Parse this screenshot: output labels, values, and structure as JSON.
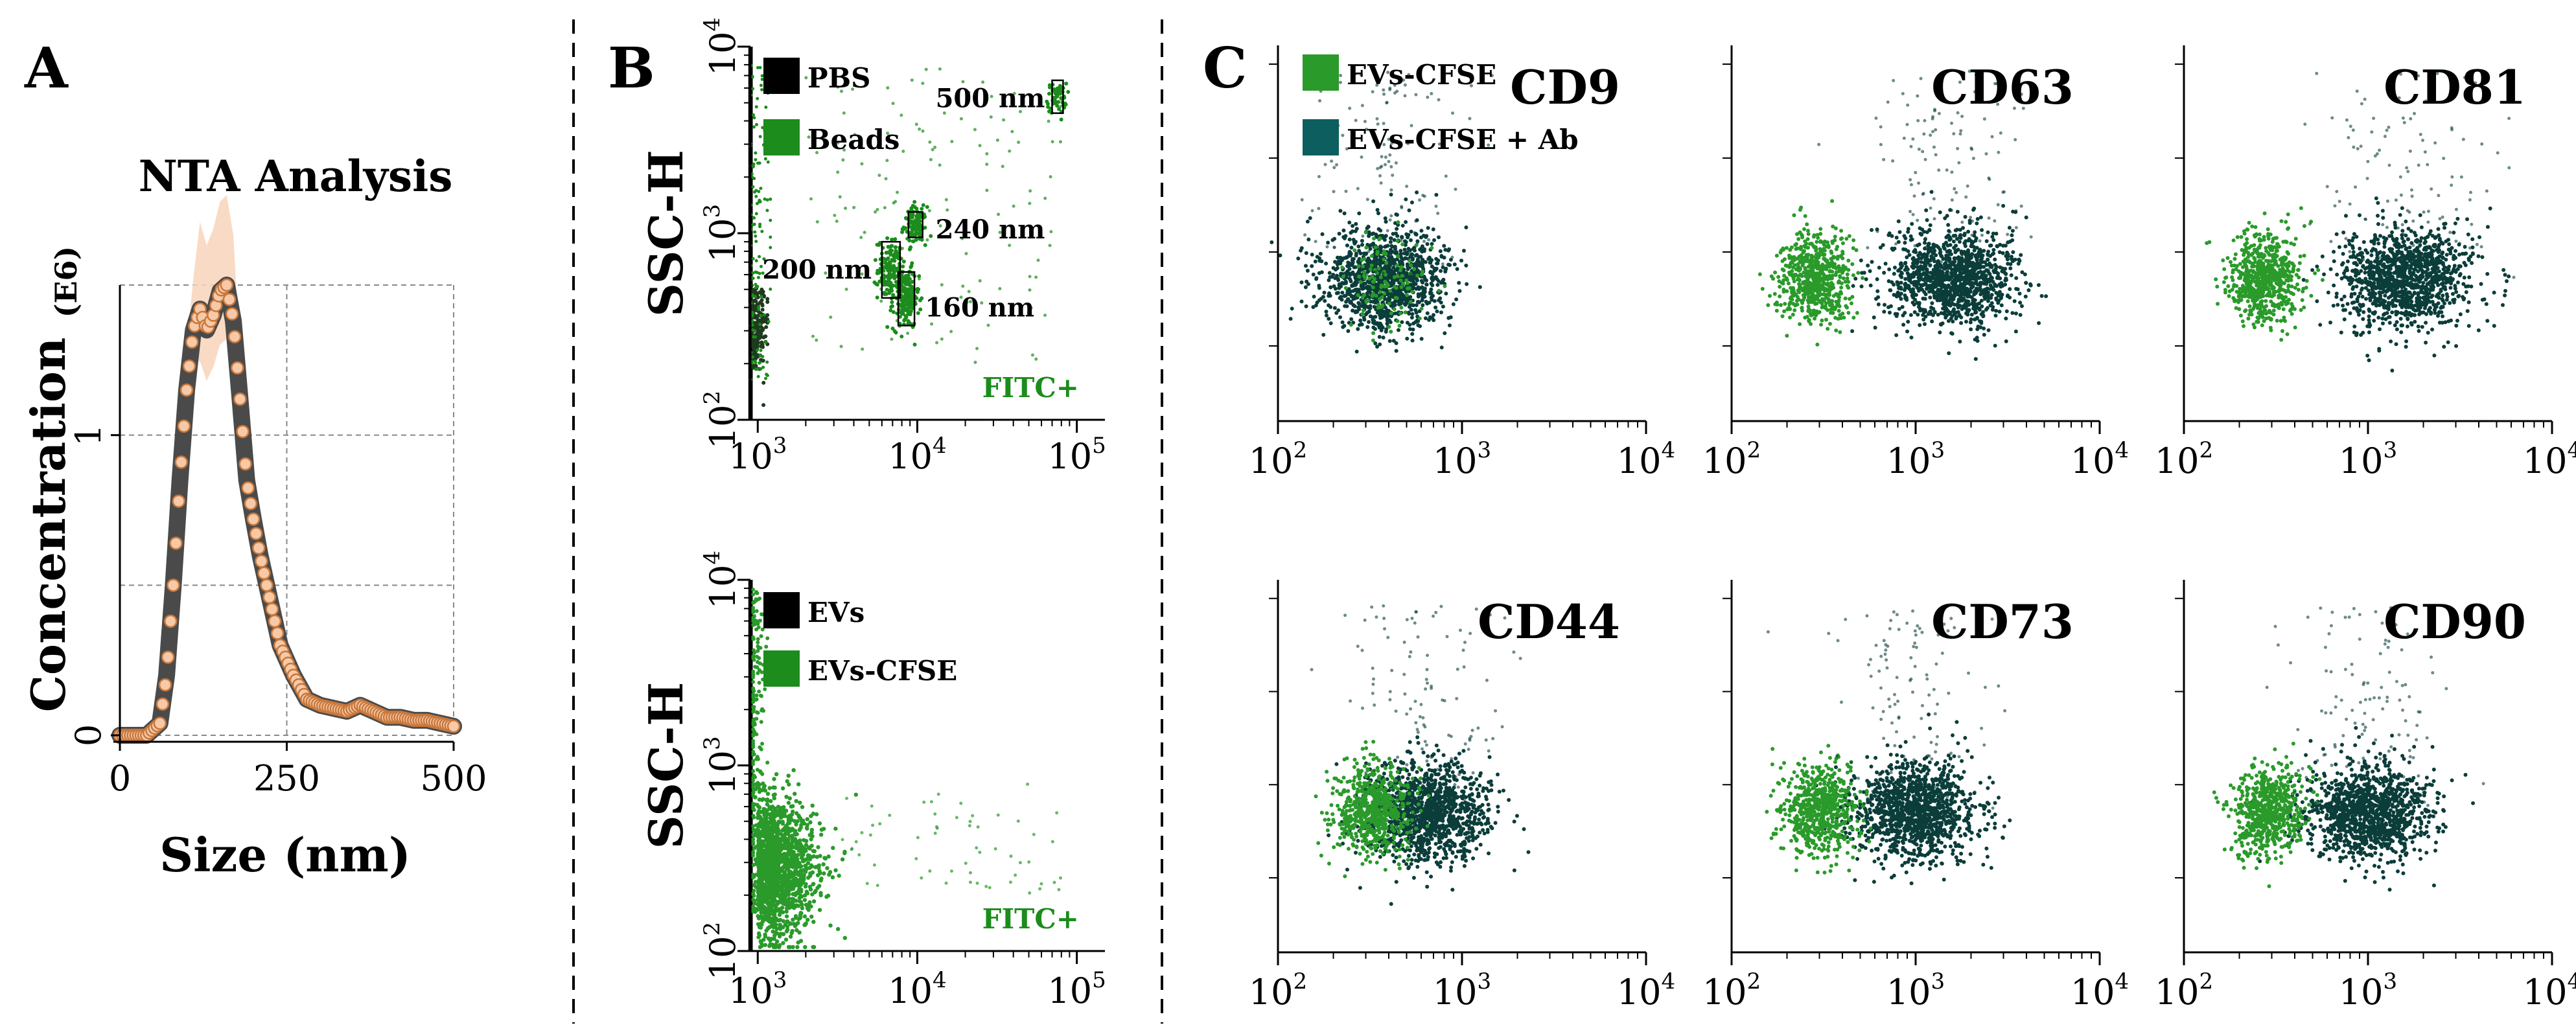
{
  "colors": {
    "nta_line": "#4a4a4a",
    "nta_marker_fill": "#f6c9a8",
    "nta_marker_edge": "#c8773a",
    "nta_band": "#f8d3bb",
    "beads_green": "#1c8c1c",
    "ev_dark": "#0b3d3a",
    "ev_green": "#2a9a2a",
    "ab_teal": "#0d5f5f",
    "black": "#000000"
  },
  "panels": {
    "A": {
      "letter": "A"
    },
    "B": {
      "letter": "B"
    },
    "C": {
      "letter": "C"
    }
  },
  "chart_data": [
    {
      "id": "nta",
      "type": "line",
      "title": "NTA Analysis",
      "ylabel": "Concentration",
      "ylabel_unit": "(E6)",
      "xlabel": "Size (nm)",
      "xlim": [
        0,
        500
      ],
      "ylim": [
        0,
        1.5
      ],
      "xticks": [
        "0",
        "250",
        "500"
      ],
      "yticks": [
        "0",
        "1"
      ],
      "series": [
        {
          "name": "Concentration",
          "x": [
            0,
            20,
            40,
            60,
            70,
            80,
            90,
            100,
            110,
            120,
            130,
            140,
            150,
            160,
            170,
            180,
            190,
            200,
            210,
            220,
            230,
            240,
            250,
            260,
            270,
            280,
            300,
            320,
            340,
            360,
            380,
            400,
            420,
            440,
            460,
            480,
            500
          ],
          "y": [
            0.0,
            0.0,
            0.0,
            0.04,
            0.2,
            0.5,
            0.85,
            1.15,
            1.35,
            1.42,
            1.35,
            1.4,
            1.48,
            1.5,
            1.38,
            1.12,
            0.85,
            0.72,
            0.6,
            0.5,
            0.4,
            0.3,
            0.25,
            0.2,
            0.16,
            0.12,
            0.1,
            0.09,
            0.08,
            0.1,
            0.08,
            0.06,
            0.06,
            0.05,
            0.05,
            0.04,
            0.03
          ]
        }
      ]
    },
    {
      "id": "beads",
      "type": "scatter",
      "xlabel": "",
      "ylabel": "SSC-H",
      "xlim": [
        900,
        150000
      ],
      "ylim": [
        100,
        10000
      ],
      "xscale": "log",
      "yscale": "log",
      "xticks": [
        1000,
        10000,
        100000
      ],
      "yticks": [
        100,
        1000,
        10000
      ],
      "legend": [
        "PBS",
        "Beads"
      ],
      "annotation": "FITC+",
      "gates": [
        {
          "label": "500 nm",
          "x": [
            70000,
            82000
          ],
          "y": [
            4400,
            6600
          ]
        },
        {
          "label": "240 nm",
          "x": [
            8800,
            10800
          ],
          "y": [
            950,
            1300
          ]
        },
        {
          "label": "200 nm",
          "x": [
            6000,
            7800
          ],
          "y": [
            450,
            900
          ]
        },
        {
          "label": "160 nm",
          "x": [
            7600,
            9600
          ],
          "y": [
            320,
            620
          ]
        }
      ]
    },
    {
      "id": "evs",
      "type": "scatter",
      "xlabel": "",
      "ylabel": "SSC-H",
      "xlim": [
        900,
        150000
      ],
      "ylim": [
        100,
        10000
      ],
      "xscale": "log",
      "yscale": "log",
      "xticks": [
        1000,
        10000,
        100000
      ],
      "yticks": [
        100,
        1000,
        10000
      ],
      "legend": [
        "EVs",
        "EVs-CFSE"
      ],
      "annotation": "FITC+"
    },
    {
      "id": "markers",
      "type": "scatter",
      "xscale": "log",
      "xlim": [
        100,
        10000
      ],
      "xticks": [
        100,
        1000,
        10000
      ],
      "legend": [
        "EVs-CFSE",
        "EVs-CFSE + Ab"
      ],
      "plots": [
        {
          "marker": "CD9",
          "ev_center": 380,
          "ab_center": 380
        },
        {
          "marker": "CD63",
          "ev_center": 280,
          "ab_center": 1600
        },
        {
          "marker": "CD81",
          "ev_center": 280,
          "ab_center": 1600
        },
        {
          "marker": "CD44",
          "ev_center": 330,
          "ab_center": 650
        },
        {
          "marker": "CD73",
          "ev_center": 300,
          "ab_center": 1000
        },
        {
          "marker": "CD90",
          "ev_center": 290,
          "ab_center": 1000
        }
      ]
    }
  ]
}
